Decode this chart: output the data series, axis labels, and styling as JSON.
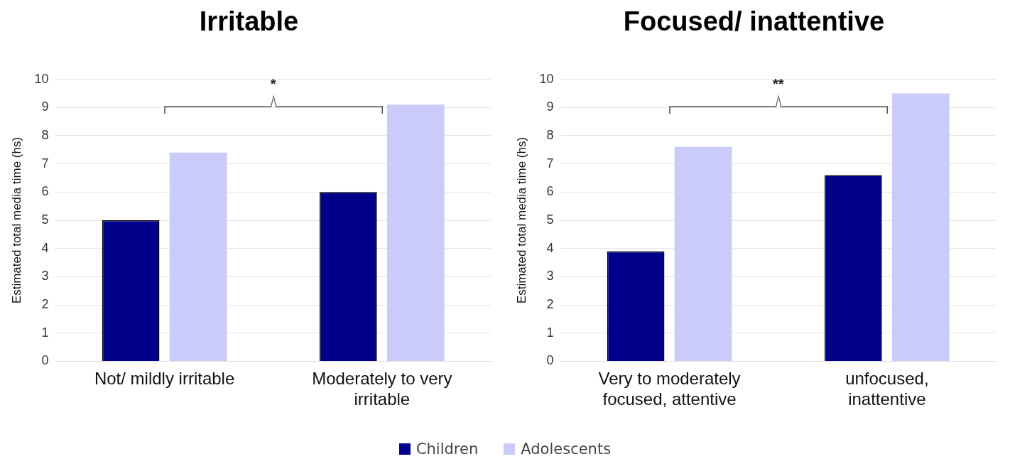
{
  "chart_data": [
    {
      "type": "bar",
      "title": "Irritable",
      "ylabel": "Estimated total media time (hs)",
      "categories": [
        "Not/ mildly irritable",
        "Moderately to very irritable"
      ],
      "series": [
        {
          "name": "Children",
          "color": "#00008b",
          "values": [
            5.0,
            6.0
          ]
        },
        {
          "name": "Adolescents",
          "color": "#cbcbfa",
          "values": [
            7.4,
            9.1
          ]
        }
      ],
      "ylim": [
        0,
        10
      ],
      "yticks": [
        0,
        1,
        2,
        3,
        4,
        5,
        6,
        7,
        8,
        9,
        10
      ],
      "grid": "y",
      "legend": "bottom",
      "annotations": [
        "*"
      ]
    },
    {
      "type": "bar",
      "title": "Focused/ inattentive",
      "ylabel": "Estimated total media time (hs)",
      "categories": [
        "Very to moderately focused, attentive",
        "unfocused, inattentive"
      ],
      "series": [
        {
          "name": "Children",
          "color": "#00008b",
          "values": [
            3.9,
            6.6
          ]
        },
        {
          "name": "Adolescents",
          "color": "#cbcbfa",
          "values": [
            7.6,
            9.5
          ]
        }
      ],
      "ylim": [
        0,
        10
      ],
      "yticks": [
        0,
        1,
        2,
        3,
        4,
        5,
        6,
        7,
        8,
        9,
        10
      ],
      "grid": "y",
      "legend": "bottom",
      "annotations": [
        "**"
      ]
    }
  ]
}
